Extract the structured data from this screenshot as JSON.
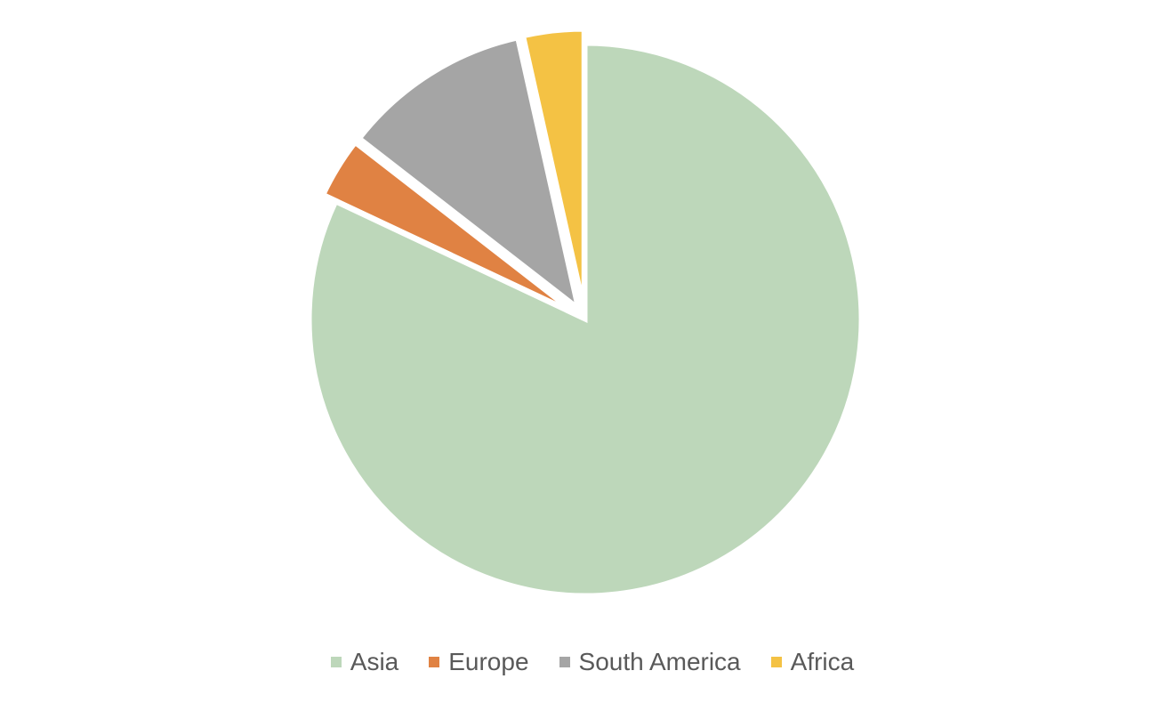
{
  "chart_data": {
    "type": "pie",
    "title": "",
    "categories": [
      "Asia",
      "Europe",
      "South America",
      "Africa"
    ],
    "values": [
      82,
      3.5,
      11,
      3.5
    ],
    "colors": [
      "#BDD7BA",
      "#E08243",
      "#A5A5A5",
      "#F4C244"
    ],
    "exploded": [
      false,
      true,
      true,
      true
    ],
    "start_angle_deg": 0,
    "direction": "clockwise",
    "legend_position": "bottom",
    "data_labels": false
  }
}
